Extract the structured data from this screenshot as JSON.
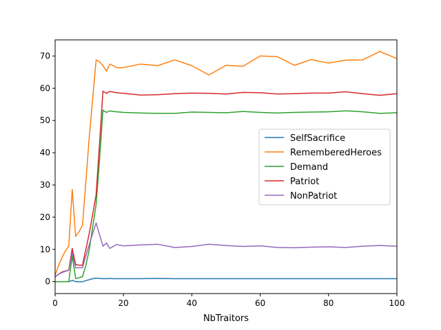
{
  "chart_data": {
    "type": "line",
    "title": "",
    "xlabel": "NbTraitors",
    "ylabel": "",
    "xlim": [
      0,
      100
    ],
    "ylim": [
      -3.7,
      75
    ],
    "xticks": [
      "0",
      "20",
      "40",
      "60",
      "80",
      "100"
    ],
    "yticks": [
      "0",
      "10",
      "20",
      "30",
      "40",
      "50",
      "60",
      "70"
    ],
    "grid": false,
    "legend_position": "center-right",
    "x": [
      0,
      1,
      2,
      3,
      4,
      5,
      6,
      7,
      8,
      9,
      10,
      11,
      12,
      13,
      14,
      15,
      16,
      17,
      18,
      19,
      20,
      25,
      30,
      35,
      40,
      45,
      50,
      55,
      60,
      65,
      70,
      75,
      80,
      85,
      90,
      95,
      100
    ],
    "series": [
      {
        "name": "SelfSacrifice",
        "color": "#1f77b4",
        "values": [
          0,
          0,
          0,
          0,
          0,
          0.4,
          0,
          0,
          0,
          0.3,
          0.6,
          0.9,
          1.1,
          1.0,
          0.9,
          0.9,
          1.0,
          0.9,
          0.9,
          0.9,
          0.9,
          0.9,
          1.0,
          0.9,
          0.9,
          0.9,
          0.9,
          0.9,
          0.9,
          0.9,
          0.9,
          0.9,
          0.9,
          0.9,
          0.9,
          0.9,
          0.9
        ]
      },
      {
        "name": "RememberedHeroes",
        "color": "#ff7f0e",
        "values": [
          2,
          5,
          7.5,
          9.5,
          11,
          28.6,
          14,
          15.5,
          17.5,
          31,
          45,
          57,
          68.8,
          68.2,
          67,
          65.3,
          67.5,
          67,
          66.4,
          66.3,
          66.4,
          67.5,
          67,
          68.8,
          67,
          64.1,
          67.1,
          66.8,
          70,
          69.8,
          67.1,
          68.9,
          67.8,
          68.7,
          68.8,
          71.4,
          69.2
        ]
      },
      {
        "name": "Demand",
        "color": "#2ca02c",
        "values": [
          0,
          0,
          0,
          0,
          0,
          8,
          1,
          1.2,
          1.5,
          5,
          10,
          17,
          24,
          38,
          53.2,
          52.5,
          53,
          52.8,
          52.7,
          52.6,
          52.5,
          52.3,
          52.2,
          52.2,
          52.6,
          52.5,
          52.4,
          52.8,
          52.5,
          52.3,
          52.5,
          52.6,
          52.7,
          53,
          52.7,
          52.2,
          52.4
        ]
      },
      {
        "name": "Patriot",
        "color": "#d62728",
        "values": [
          1.5,
          2.3,
          3,
          3.3,
          3.6,
          10.3,
          5.3,
          5.1,
          5.1,
          10,
          15,
          21,
          27,
          43,
          59.1,
          58.4,
          59,
          58.8,
          58.6,
          58.5,
          58.4,
          57.9,
          58,
          58.3,
          58.5,
          58.4,
          58.2,
          58.7,
          58.6,
          58.2,
          58.3,
          58.5,
          58.5,
          58.9,
          58.3,
          57.8,
          58.3
        ]
      },
      {
        "name": "NonPatriot",
        "color": "#9467bd",
        "values": [
          1.5,
          2.3,
          2.8,
          3.2,
          3.5,
          9,
          4.3,
          4.3,
          4.3,
          8,
          11.5,
          15,
          18.2,
          14.5,
          11,
          12,
          10.3,
          10.9,
          11.5,
          11.3,
          11.1,
          11.4,
          11.6,
          10.6,
          10.9,
          11.6,
          11.2,
          10.9,
          11.1,
          10.6,
          10.5,
          10.7,
          10.8,
          10.6,
          11,
          11.2,
          11
        ]
      }
    ]
  }
}
